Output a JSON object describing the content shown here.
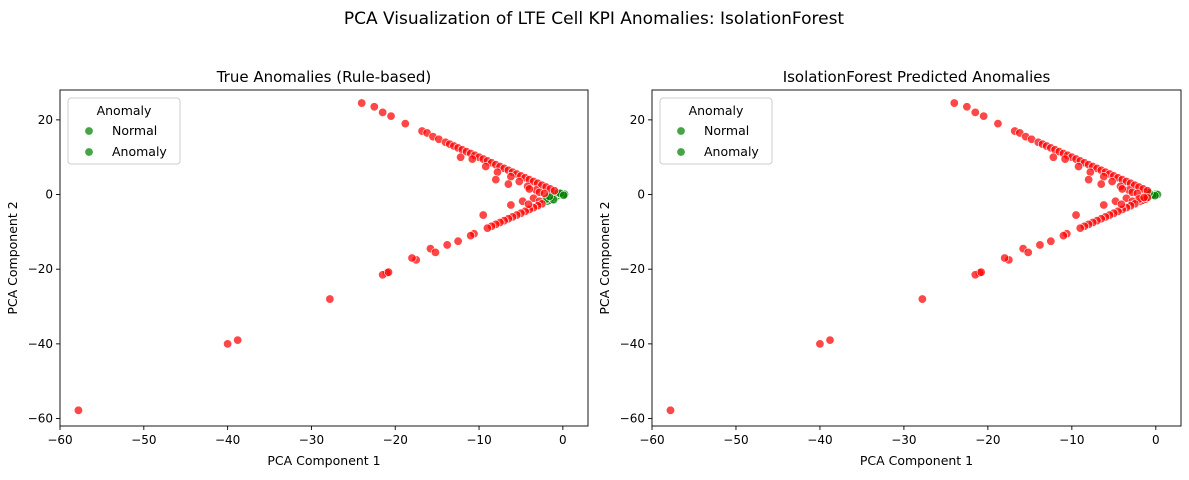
{
  "figure": {
    "suptitle": "PCA Visualization of LTE Cell KPI Anomalies: IsolationForest"
  },
  "colors": {
    "normal": "#008000",
    "anomaly": "#ff0000"
  },
  "chart_data": [
    {
      "type": "scatter",
      "title": "True Anomalies (Rule-based)",
      "xlabel": "PCA Component 1",
      "ylabel": "PCA Component 2",
      "xlim": [
        -60,
        3
      ],
      "ylim": [
        -62,
        28
      ],
      "xticks": [
        -60,
        -50,
        -40,
        -30,
        -20,
        -10,
        0
      ],
      "yticks": [
        -60,
        -40,
        -20,
        0,
        20
      ],
      "grid": false,
      "legend": {
        "title": "Anomaly",
        "placement": "top-left",
        "entries": [
          "Normal",
          "Anomaly"
        ]
      },
      "series": [
        {
          "name": "Normal",
          "color": "#008000",
          "points": [
            [
              -1.8,
              -1.8
            ],
            [
              -1.5,
              -1.5
            ],
            [
              -1.2,
              -1.2
            ],
            [
              -1.0,
              -0.8
            ],
            [
              -0.8,
              -0.6
            ],
            [
              -0.6,
              -0.4
            ],
            [
              -0.4,
              -0.2
            ],
            [
              -0.2,
              0
            ],
            [
              0,
              0
            ],
            [
              0.2,
              0.1
            ],
            [
              -1.4,
              -0.8
            ],
            [
              -0.9,
              0.2
            ],
            [
              -0.5,
              0.4
            ],
            [
              -2.0,
              -1.2
            ],
            [
              -1.1,
              -1.4
            ],
            [
              -0.3,
              0.3
            ],
            [
              0.1,
              -0.2
            ],
            [
              -1.6,
              -0.5
            ]
          ]
        },
        {
          "name": "Anomaly",
          "color": "#ff0000",
          "points": [
            [
              -24,
              24.5
            ],
            [
              -22.5,
              23.5
            ],
            [
              -21.5,
              22
            ],
            [
              -20.5,
              21
            ],
            [
              -18.8,
              19
            ],
            [
              -16.8,
              17
            ],
            [
              -16.2,
              16.5
            ],
            [
              -15.5,
              15.5
            ],
            [
              -14.8,
              14.8
            ],
            [
              -14,
              14
            ],
            [
              -13.5,
              13.5
            ],
            [
              -13,
              13
            ],
            [
              -12.5,
              12.5
            ],
            [
              -12,
              12
            ],
            [
              -11.5,
              11.5
            ],
            [
              -11,
              11
            ],
            [
              -10.5,
              10.5
            ],
            [
              -10,
              10
            ],
            [
              -9.5,
              9.5
            ],
            [
              -9,
              9
            ],
            [
              -8.5,
              8.5
            ],
            [
              -8,
              8
            ],
            [
              -7.5,
              7.5
            ],
            [
              -7,
              7
            ],
            [
              -6.5,
              6.5
            ],
            [
              -6,
              6
            ],
            [
              -5.5,
              5.5
            ],
            [
              -5,
              5
            ],
            [
              -4.5,
              4.5
            ],
            [
              -4,
              4
            ],
            [
              -3.5,
              3.5
            ],
            [
              -3,
              3
            ],
            [
              -2.5,
              2.5
            ],
            [
              -2,
              2
            ],
            [
              -1.5,
              1.5
            ],
            [
              -1,
              1
            ],
            [
              -12.2,
              10
            ],
            [
              -10.8,
              9.5
            ],
            [
              -9.2,
              7.5
            ],
            [
              -7.8,
              6
            ],
            [
              -6.2,
              4.8
            ],
            [
              -5.2,
              3.5
            ],
            [
              -4.2,
              2.2
            ],
            [
              -3.2,
              1.2
            ],
            [
              -2.8,
              0.6
            ],
            [
              -2.2,
              0.3
            ],
            [
              -8,
              4
            ],
            [
              -6.5,
              2.8
            ],
            [
              -4,
              1.5
            ],
            [
              -3.5,
              -1
            ],
            [
              -2.8,
              -1.8
            ],
            [
              -2.5,
              -2.5
            ],
            [
              -3,
              -3
            ],
            [
              -3.5,
              -3.5
            ],
            [
              -4,
              -4
            ],
            [
              -4.5,
              -4.5
            ],
            [
              -5,
              -5
            ],
            [
              -5.5,
              -5.5
            ],
            [
              -6,
              -6
            ],
            [
              -6.5,
              -6.5
            ],
            [
              -7,
              -7
            ],
            [
              -7.5,
              -7.5
            ],
            [
              -8,
              -8
            ],
            [
              -8.5,
              -8.5
            ],
            [
              -9,
              -9
            ],
            [
              -9.5,
              -5.5
            ],
            [
              -6.2,
              -2.8
            ],
            [
              -4.8,
              -1.8
            ],
            [
              -4.1,
              -2.6
            ],
            [
              -10.6,
              -10.5
            ],
            [
              -11,
              -11
            ],
            [
              -12.5,
              -12.5
            ],
            [
              -13.8,
              -13.5
            ],
            [
              -15.8,
              -14.5
            ],
            [
              -15.2,
              -15.5
            ],
            [
              -17.5,
              -17.5
            ],
            [
              -18,
              -17
            ],
            [
              -21,
              -21
            ],
            [
              -21.5,
              -21.5
            ],
            [
              -20.8,
              -20.8
            ],
            [
              -27.8,
              -28
            ],
            [
              -40,
              -40
            ],
            [
              -38.8,
              -39
            ],
            [
              -57.8,
              -57.8
            ]
          ]
        }
      ]
    },
    {
      "type": "scatter",
      "title": "IsolationForest Predicted Anomalies",
      "xlabel": "PCA Component 1",
      "ylabel": "PCA Component 2",
      "xlim": [
        -60,
        3
      ],
      "ylim": [
        -62,
        28
      ],
      "xticks": [
        -60,
        -50,
        -40,
        -30,
        -20,
        -10,
        0
      ],
      "yticks": [
        -60,
        -40,
        -20,
        0,
        20
      ],
      "grid": false,
      "legend": {
        "title": "Anomaly",
        "placement": "top-left",
        "entries": [
          "Normal",
          "Anomaly"
        ]
      },
      "series": [
        {
          "name": "Normal",
          "color": "#008000",
          "points": [
            [
              -0.6,
              0.2
            ],
            [
              -0.3,
              0
            ],
            [
              0,
              0.1
            ],
            [
              0.2,
              0
            ],
            [
              -0.4,
              -0.2
            ],
            [
              -0.1,
              -0.3
            ],
            [
              -0.8,
              0.4
            ]
          ]
        },
        {
          "name": "Anomaly",
          "color": "#ff0000",
          "points": [
            [
              -24,
              24.5
            ],
            [
              -22.5,
              23.5
            ],
            [
              -21.5,
              22
            ],
            [
              -20.5,
              21
            ],
            [
              -18.8,
              19
            ],
            [
              -16.8,
              17
            ],
            [
              -16.2,
              16.5
            ],
            [
              -15.5,
              15.5
            ],
            [
              -14.8,
              14.8
            ],
            [
              -14,
              14
            ],
            [
              -13.5,
              13.5
            ],
            [
              -13,
              13
            ],
            [
              -12.5,
              12.5
            ],
            [
              -12,
              12
            ],
            [
              -11.5,
              11.5
            ],
            [
              -11,
              11
            ],
            [
              -10.5,
              10.5
            ],
            [
              -10,
              10
            ],
            [
              -9.5,
              9.5
            ],
            [
              -9,
              9
            ],
            [
              -8.5,
              8.5
            ],
            [
              -8,
              8
            ],
            [
              -7.5,
              7.5
            ],
            [
              -7,
              7
            ],
            [
              -6.5,
              6.5
            ],
            [
              -6,
              6
            ],
            [
              -5.5,
              5.5
            ],
            [
              -5,
              5
            ],
            [
              -4.5,
              4.5
            ],
            [
              -4,
              4
            ],
            [
              -3.5,
              3.5
            ],
            [
              -3,
              3
            ],
            [
              -2.5,
              2.5
            ],
            [
              -2,
              2
            ],
            [
              -1.5,
              1.5
            ],
            [
              -1,
              1
            ],
            [
              -12.2,
              10
            ],
            [
              -10.8,
              9.5
            ],
            [
              -9.2,
              7.5
            ],
            [
              -7.8,
              6
            ],
            [
              -6.2,
              4.8
            ],
            [
              -5.2,
              3.5
            ],
            [
              -4.2,
              2.2
            ],
            [
              -3.2,
              1.2
            ],
            [
              -2.8,
              0.6
            ],
            [
              -2.2,
              0.3
            ],
            [
              -8,
              4
            ],
            [
              -6.5,
              2.8
            ],
            [
              -4,
              1.5
            ],
            [
              -1.8,
              -1.8
            ],
            [
              -1.5,
              -1.5
            ],
            [
              -1.2,
              -1.2
            ],
            [
              -1.0,
              -0.8
            ],
            [
              -2,
              -1.2
            ],
            [
              -1.4,
              -0.8
            ],
            [
              -3.5,
              -1
            ],
            [
              -2.8,
              -1.8
            ],
            [
              -2.5,
              -2.5
            ],
            [
              -3,
              -3
            ],
            [
              -3.5,
              -3.5
            ],
            [
              -4,
              -4
            ],
            [
              -4.5,
              -4.5
            ],
            [
              -5,
              -5
            ],
            [
              -5.5,
              -5.5
            ],
            [
              -6,
              -6
            ],
            [
              -6.5,
              -6.5
            ],
            [
              -7,
              -7
            ],
            [
              -7.5,
              -7.5
            ],
            [
              -8,
              -8
            ],
            [
              -8.5,
              -8.5
            ],
            [
              -9,
              -9
            ],
            [
              -9.5,
              -5.5
            ],
            [
              -6.2,
              -2.8
            ],
            [
              -4.8,
              -1.8
            ],
            [
              -4.1,
              -2.6
            ],
            [
              -10.6,
              -10.5
            ],
            [
              -11,
              -11
            ],
            [
              -12.5,
              -12.5
            ],
            [
              -13.8,
              -13.5
            ],
            [
              -15.8,
              -14.5
            ],
            [
              -15.2,
              -15.5
            ],
            [
              -17.5,
              -17.5
            ],
            [
              -18,
              -17
            ],
            [
              -21,
              -21
            ],
            [
              -21.5,
              -21.5
            ],
            [
              -20.8,
              -20.8
            ],
            [
              -27.8,
              -28
            ],
            [
              -40,
              -40
            ],
            [
              -38.8,
              -39
            ],
            [
              -57.8,
              -57.8
            ]
          ]
        }
      ]
    }
  ]
}
